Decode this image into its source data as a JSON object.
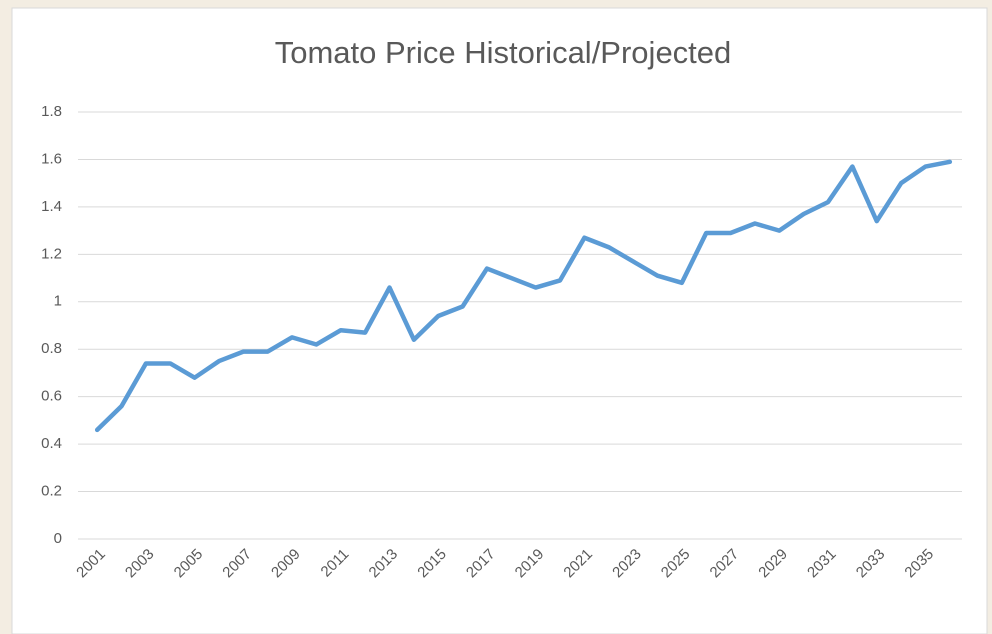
{
  "chart_data": {
    "type": "line",
    "title": "Tomato Price Historical/Projected",
    "categories": [
      "2001",
      null,
      "2003",
      null,
      "2005",
      null,
      "2007",
      null,
      "2009",
      null,
      "2011",
      null,
      "2013",
      null,
      "2015",
      null,
      "2017",
      null,
      "2019",
      null,
      "2021",
      null,
      "2023",
      null,
      "2025",
      null,
      "2027",
      null,
      "2029",
      null,
      "2031",
      null,
      "2033",
      null,
      "2035",
      null
    ],
    "values": [
      0.46,
      0.56,
      0.74,
      0.74,
      0.68,
      0.75,
      0.79,
      0.79,
      0.85,
      0.82,
      0.88,
      0.87,
      1.06,
      0.84,
      0.94,
      0.98,
      1.14,
      1.1,
      1.06,
      1.09,
      1.27,
      1.23,
      1.17,
      1.11,
      1.08,
      1.29,
      1.29,
      1.33,
      1.3,
      1.37,
      1.42,
      1.57,
      1.34,
      1.5,
      1.57,
      1.59
    ],
    "color": "#5b9bd5",
    "ylim": [
      0,
      1.8
    ],
    "yticks": [
      0,
      0.2,
      0.4,
      0.6,
      0.8,
      1,
      1.2,
      1.4,
      1.6,
      1.8
    ],
    "grid": true
  }
}
